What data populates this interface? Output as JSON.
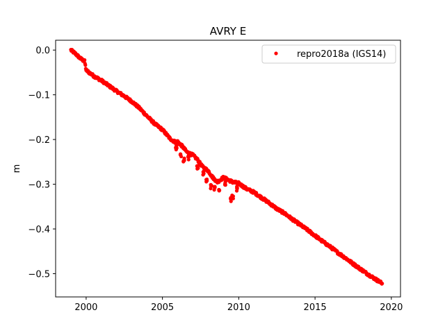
{
  "chart_data": {
    "type": "scatter",
    "title": "AVRY E",
    "xlabel": "",
    "ylabel": "m",
    "xlim": [
      1998.0,
      2020.6
    ],
    "ylim": [
      -0.552,
      0.022
    ],
    "x_ticks": [
      2000,
      2005,
      2010,
      2015,
      2020
    ],
    "x_tick_labels": [
      "2000",
      "2005",
      "2010",
      "2015",
      "2020"
    ],
    "y_ticks": [
      0.0,
      -0.1,
      -0.2,
      -0.3,
      -0.4,
      -0.5
    ],
    "y_tick_labels": [
      "0.0",
      "−0.1",
      "−0.2",
      "−0.3",
      "−0.4",
      "−0.5"
    ],
    "grid": false,
    "legend_position": "top-right",
    "series": [
      {
        "name": "repro2018a (IGS14)",
        "color": "#ff0000",
        "marker": "dot",
        "anchor_points": [
          [
            1999.0,
            0.0
          ],
          [
            1999.3,
            -0.008
          ],
          [
            1999.6,
            -0.018
          ],
          [
            1999.9,
            -0.025
          ],
          [
            2000.0,
            -0.045
          ],
          [
            2000.5,
            -0.058
          ],
          [
            2001.0,
            -0.068
          ],
          [
            2001.5,
            -0.08
          ],
          [
            2002.0,
            -0.092
          ],
          [
            2002.5,
            -0.103
          ],
          [
            2003.0,
            -0.115
          ],
          [
            2003.5,
            -0.13
          ],
          [
            2004.0,
            -0.148
          ],
          [
            2004.5,
            -0.165
          ],
          [
            2005.0,
            -0.178
          ],
          [
            2005.3,
            -0.19
          ],
          [
            2005.5,
            -0.198
          ],
          [
            2005.8,
            -0.205
          ],
          [
            2006.0,
            -0.205
          ],
          [
            2006.3,
            -0.215
          ],
          [
            2006.6,
            -0.228
          ],
          [
            2007.0,
            -0.235
          ],
          [
            2007.3,
            -0.245
          ],
          [
            2007.6,
            -0.26
          ],
          [
            2008.0,
            -0.27
          ],
          [
            2008.3,
            -0.285
          ],
          [
            2008.6,
            -0.295
          ],
          [
            2009.0,
            -0.285
          ],
          [
            2009.3,
            -0.29
          ],
          [
            2009.6,
            -0.295
          ],
          [
            2010.0,
            -0.298
          ],
          [
            2010.5,
            -0.31
          ],
          [
            2011.0,
            -0.318
          ],
          [
            2011.5,
            -0.33
          ],
          [
            2012.0,
            -0.342
          ],
          [
            2012.5,
            -0.355
          ],
          [
            2013.0,
            -0.365
          ],
          [
            2013.5,
            -0.378
          ],
          [
            2014.0,
            -0.39
          ],
          [
            2014.5,
            -0.402
          ],
          [
            2015.0,
            -0.415
          ],
          [
            2015.5,
            -0.428
          ],
          [
            2016.0,
            -0.44
          ],
          [
            2016.5,
            -0.453
          ],
          [
            2017.0,
            -0.465
          ],
          [
            2017.5,
            -0.478
          ],
          [
            2018.0,
            -0.49
          ],
          [
            2018.5,
            -0.502
          ],
          [
            2019.0,
            -0.513
          ],
          [
            2019.4,
            -0.522
          ]
        ],
        "excursions": [
          [
            2005.9,
            -0.218
          ],
          [
            2006.2,
            -0.235
          ],
          [
            2006.4,
            -0.245
          ],
          [
            2006.7,
            -0.24
          ],
          [
            2007.3,
            -0.262
          ],
          [
            2007.7,
            -0.275
          ],
          [
            2007.9,
            -0.29
          ],
          [
            2008.2,
            -0.305
          ],
          [
            2008.4,
            -0.31
          ],
          [
            2008.7,
            -0.31
          ],
          [
            2009.1,
            -0.3
          ],
          [
            2009.5,
            -0.335
          ],
          [
            2009.6,
            -0.328
          ],
          [
            2009.9,
            -0.31
          ]
        ]
      }
    ]
  }
}
